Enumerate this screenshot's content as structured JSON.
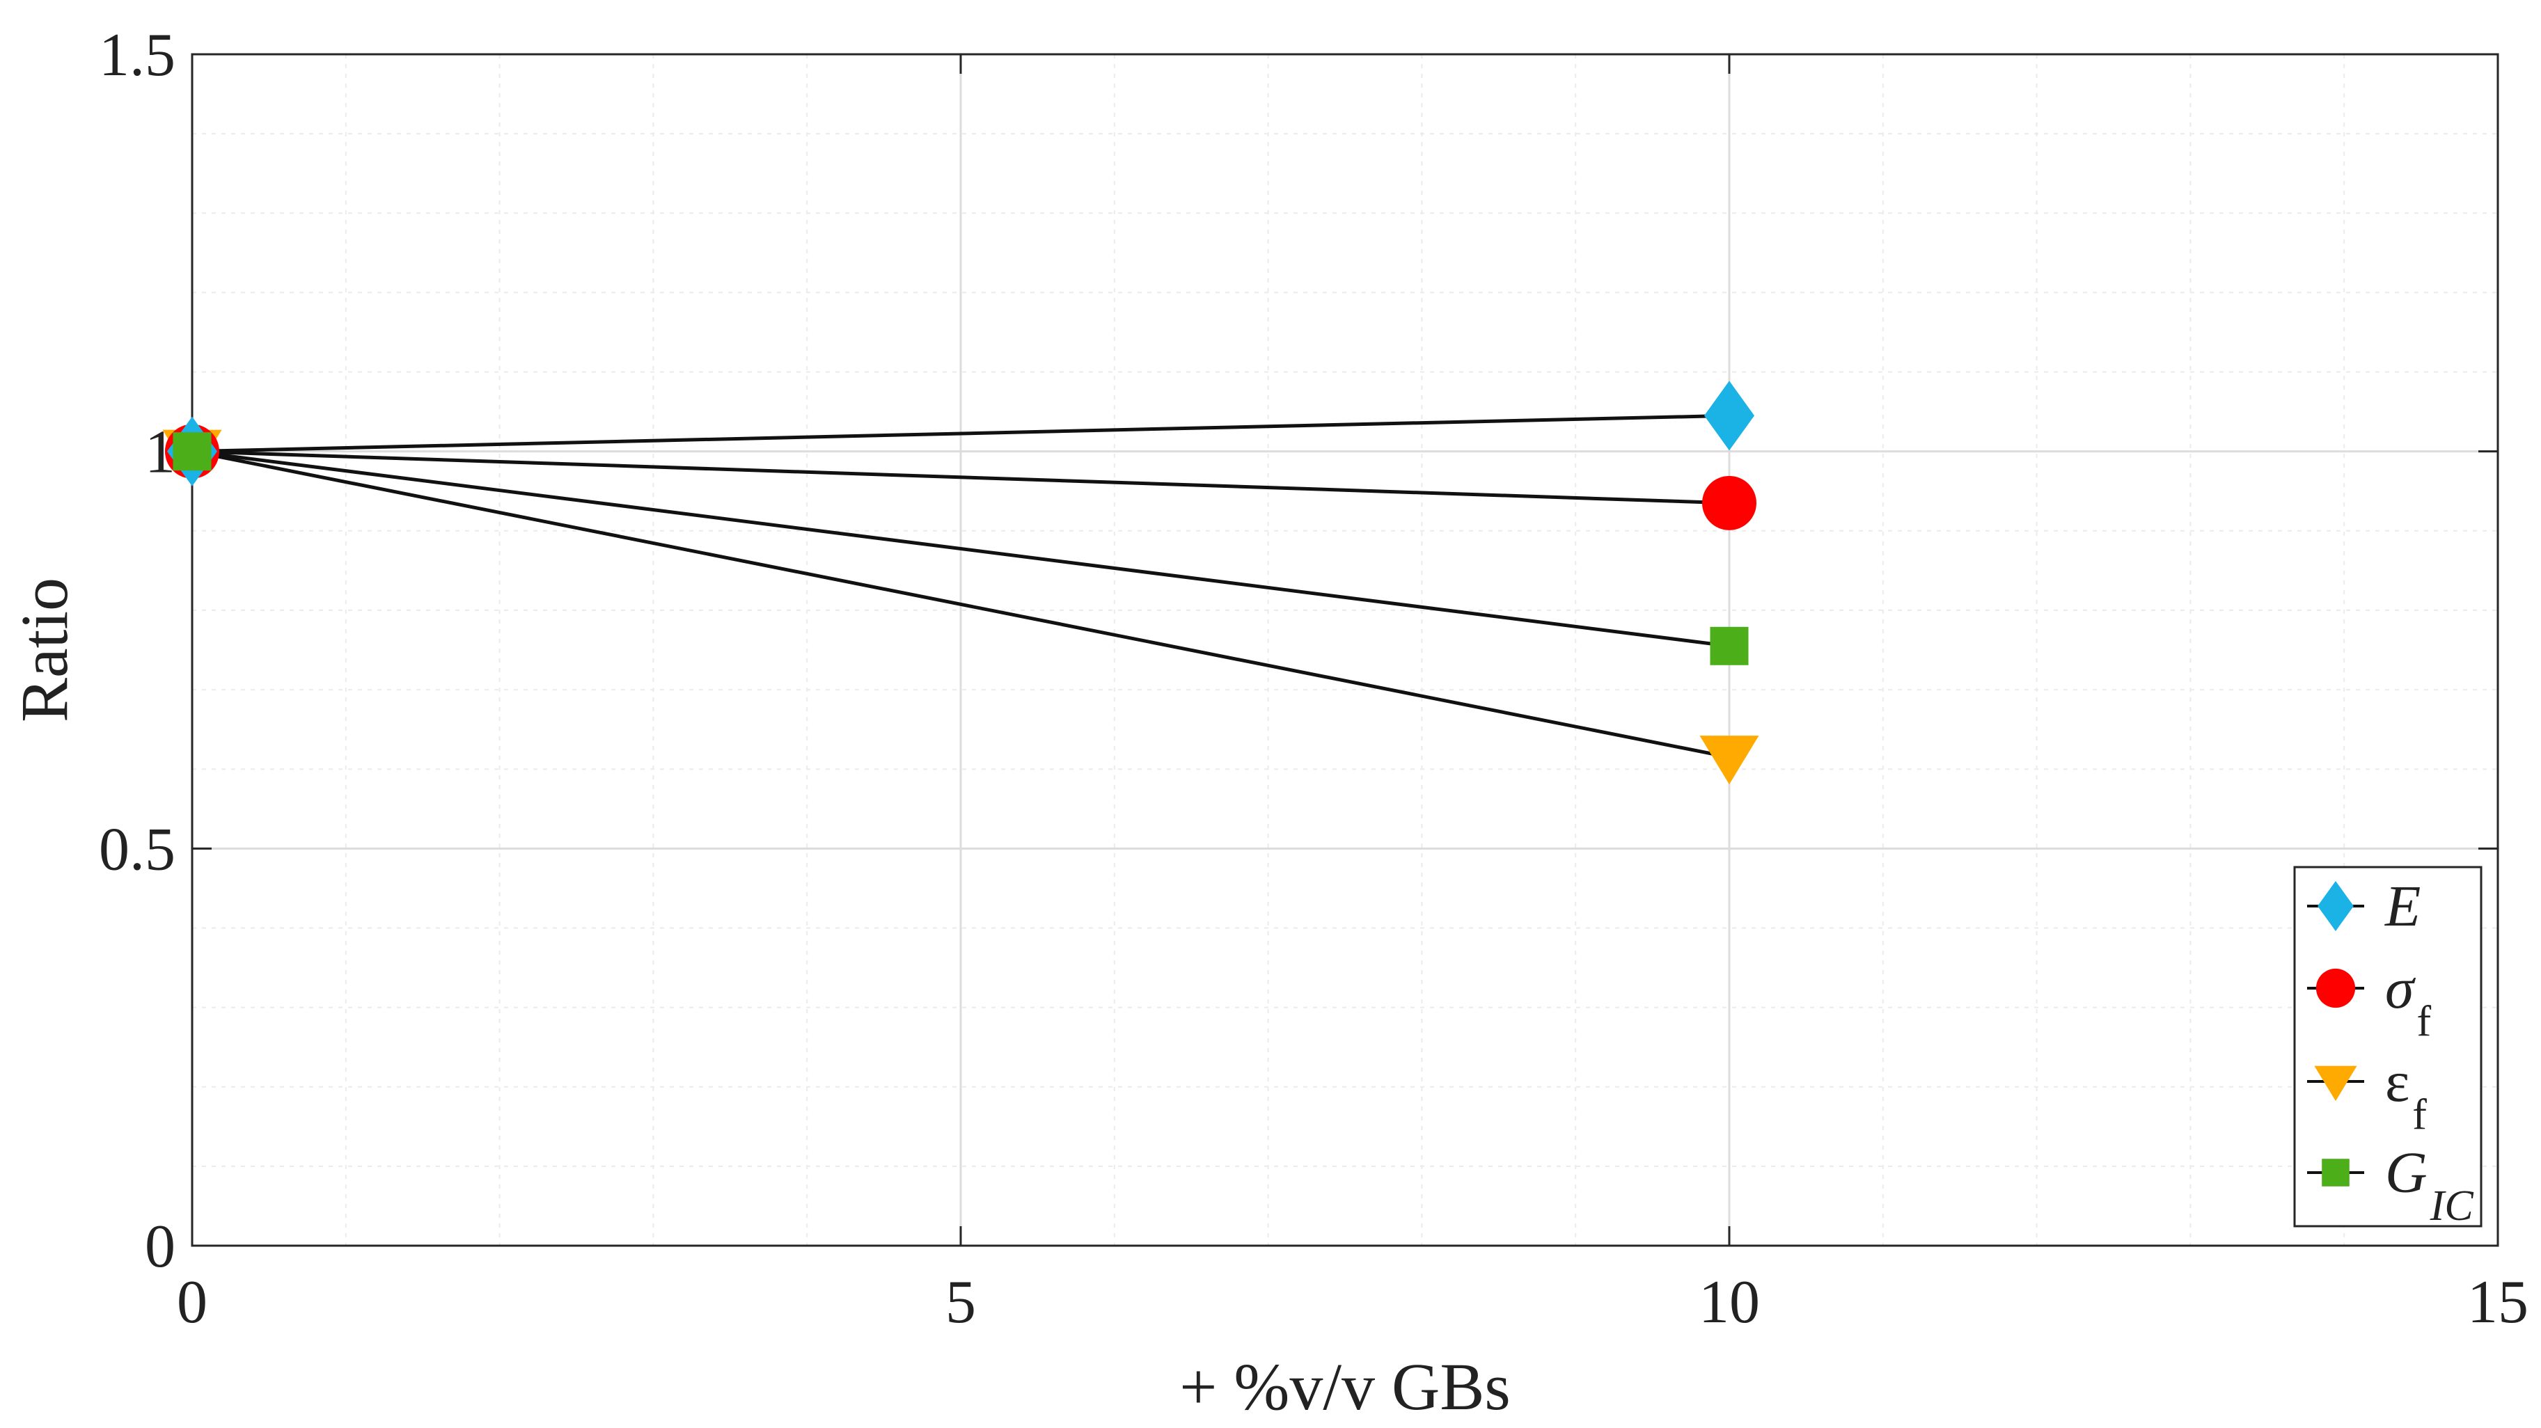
{
  "chart_data": {
    "type": "line",
    "title": "",
    "xlabel": "+ %v/v GBs",
    "ylabel": "Ratio",
    "xlim": [
      0,
      15
    ],
    "ylim": [
      0,
      1.5
    ],
    "xticks": [
      0,
      5,
      10,
      15
    ],
    "xtick_labels": [
      "0",
      "5",
      "10",
      "15"
    ],
    "yticks": [
      0,
      0.5,
      1,
      1.5
    ],
    "ytick_labels": [
      "0",
      "0.5",
      "1",
      "1.5"
    ],
    "grid": true,
    "minor_grid": true,
    "legend_position": "bottom-right",
    "series": [
      {
        "id": "E",
        "name": "E",
        "sub": "",
        "marker": "diamond",
        "color": "#1bb3e6",
        "x": [
          0,
          10
        ],
        "values": [
          1.0,
          1.045
        ]
      },
      {
        "id": "sigma_f",
        "name": "σ",
        "sub": "f",
        "marker": "circle",
        "color": "#ff0000",
        "x": [
          0,
          10
        ],
        "values": [
          1.0,
          0.935
        ]
      },
      {
        "id": "epsilon_f",
        "name": "ε",
        "sub": "f",
        "marker": "triangle-down",
        "color": "#ffaa00",
        "x": [
          0,
          10
        ],
        "values": [
          1.0,
          0.615
        ]
      },
      {
        "id": "G_IC",
        "name": "G",
        "sub": "IC",
        "marker": "square",
        "color": "#4caf1a",
        "x": [
          0,
          10
        ],
        "values": [
          1.0,
          0.755
        ]
      }
    ]
  }
}
